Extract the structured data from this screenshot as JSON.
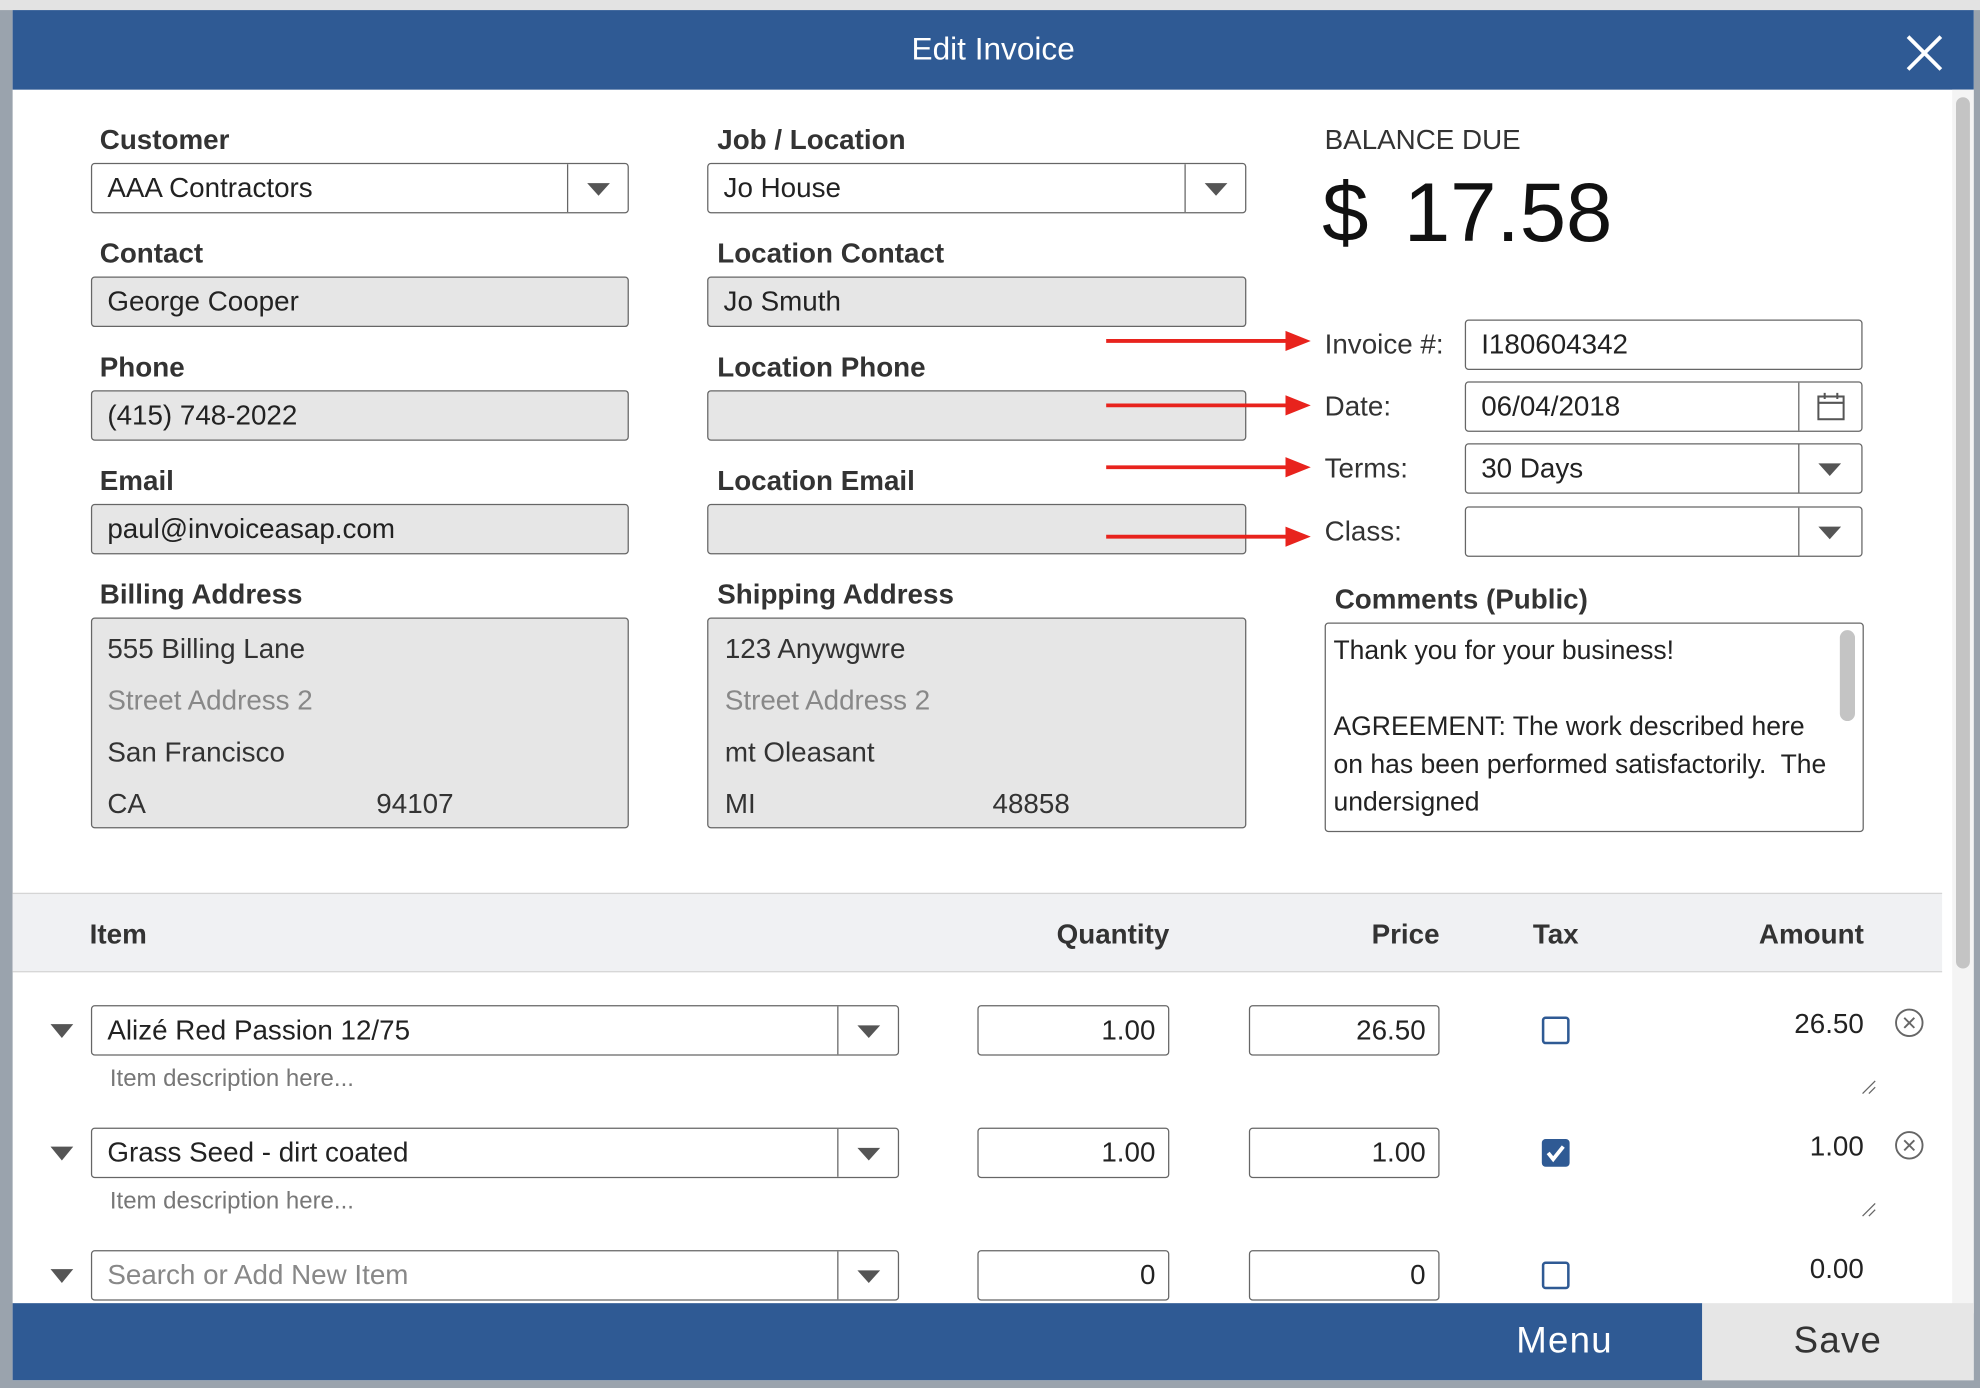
{
  "dialog": {
    "title": "Edit Invoice"
  },
  "customer": {
    "label": "Customer",
    "value": "AAA Contractors"
  },
  "contact": {
    "label": "Contact",
    "value": "George Cooper"
  },
  "phone": {
    "label": "Phone",
    "value": "(415) 748-2022"
  },
  "email": {
    "label": "Email",
    "value": "paul@invoiceasap.com"
  },
  "billing_address": {
    "label": "Billing Address",
    "line1": "555 Billing Lane",
    "line2_placeholder": "Street Address 2",
    "city": "San Francisco",
    "state": "CA",
    "zip": "94107"
  },
  "job_location": {
    "label": "Job / Location",
    "value": "Jo House"
  },
  "location_contact": {
    "label": "Location Contact",
    "value": "Jo Smuth"
  },
  "location_phone": {
    "label": "Location Phone"
  },
  "location_email": {
    "label": "Location Email"
  },
  "shipping_address": {
    "label": "Shipping Address",
    "line1": "123 Anywgwre",
    "line2_placeholder": "Street Address 2",
    "city": "mt Oleasant",
    "state": "MI",
    "zip": "48858"
  },
  "balance_due": {
    "label": "BALANCE DUE",
    "currency": "$",
    "amount": "17.58"
  },
  "invoice_number": {
    "label": "Invoice #:",
    "value": "I180604342"
  },
  "date": {
    "label": "Date:",
    "value": "06/04/2018"
  },
  "terms": {
    "label": "Terms:",
    "value": "30 Days"
  },
  "class": {
    "label": "Class:"
  },
  "comments": {
    "label": "Comments (Public)",
    "text": "Thank you for your business!\n\nAGREEMENT: The work described here on has been performed satisfactorily.  The undersigned"
  },
  "table": {
    "headers": [
      "Item",
      "Quantity",
      "Price",
      "Tax",
      "Amount"
    ],
    "rows": [
      {
        "item": "Alizé Red Passion 12/75",
        "description_placeholder": "Item description here...",
        "quantity": "1.00",
        "price": "26.50",
        "tax": false,
        "amount": "26.50"
      },
      {
        "item": "Grass Seed - dirt coated",
        "description_placeholder": "Item description here...",
        "quantity": "1.00",
        "price": "1.00",
        "tax": true,
        "amount": "1.00"
      },
      {
        "item_placeholder": "Search or Add New Item",
        "quantity": "0",
        "price": "0",
        "tax": false,
        "amount": "0.00"
      }
    ]
  },
  "footer": {
    "menu": "Menu",
    "save": "Save"
  }
}
